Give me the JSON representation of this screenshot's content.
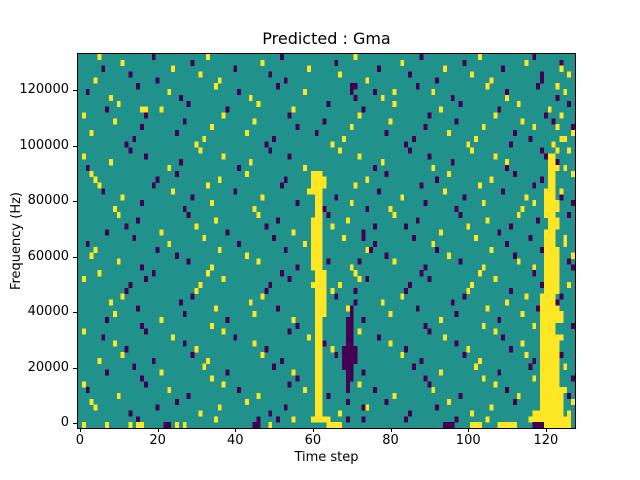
{
  "figure": {
    "title": "Predicted : Gma",
    "background": "#ffffff"
  },
  "axes": {
    "xlabel": "Time step",
    "ylabel": "Frequency (Hz)",
    "x_ticks": [
      0,
      20,
      40,
      60,
      80,
      100,
      120
    ],
    "y_ticks": [
      0,
      20000,
      40000,
      60000,
      80000,
      100000,
      120000
    ],
    "xlim": [
      -0.5,
      127.5
    ],
    "ylim": [
      -1800,
      133000
    ]
  },
  "chart_data": {
    "type": "heatmap",
    "title": "Predicted : Gma",
    "xlabel": "Time step",
    "ylabel": "Frequency (Hz)",
    "n_cols": 128,
    "n_rows": 64,
    "x_range": [
      0,
      127
    ],
    "y_range_hz": [
      0,
      128000
    ],
    "colormap": "viridis",
    "legend": "none",
    "value_classes": {
      "low": 0,
      "mid": 1,
      "high": 2
    },
    "colors": {
      "low": "#440154",
      "mid": "#21918c",
      "high": "#fde725"
    },
    "notable_features": [
      "yellow vertical band at time steps 60-63 from 0 to ~88000 Hz",
      "purple vertical band at time steps 68-71 from ~14000 to ~42000 Hz",
      "yellow vertical band at time steps 119-124 from 0 to ~90000 Hz",
      "sparse yellow/purple speckle noise over teal background everywhere"
    ],
    "rows_top_to_bottom": [
      {
        "y": [
          5,
          33,
          71,
          103
        ],
        "p": [
          19,
          52,
          88,
          117
        ]
      },
      {
        "y": [
          11,
          47,
          83,
          115
        ],
        "p": [
          29,
          66,
          99,
          124
        ]
      },
      {
        "y": [
          24,
          59,
          94,
          124
        ],
        "p": [
          6,
          40,
          77,
          109
        ]
      },
      {
        "y": [
          31,
          67,
          101,
          126
        ],
        "p": [
          13,
          49,
          85,
          119
        ]
      },
      {
        "y": [
          4,
          36,
          74,
          106
        ],
        "p": [
          20,
          53,
          92,
          119
        ]
      },
      {
        "y": [
          35,
          105,
          123
        ],
        "p": [
          15,
          51,
          [
            70,
            71
          ],
          87,
          118
        ]
      },
      {
        "y": [
          23,
          58,
          81,
          91,
          125
        ],
        "p": [
          2,
          41,
          70,
          76,
          110
        ]
      },
      {
        "y": [
          8,
          44,
          78,
          110
        ],
        "p": [
          26,
          71,
          96,
          123
        ]
      },
      {
        "y": [
          10,
          46,
          81,
          113
        ],
        "p": [
          28,
          64,
          98,
          126
        ]
      },
      {
        "y": [
          [
            16,
            17
          ],
          21,
          55,
          93,
          121
        ],
        "p": [
          7,
          38,
          73,
          108
        ]
      },
      {
        "y": [
          1,
          37,
          72,
          107,
          124
        ],
        "p": [
          17,
          54,
          90,
          120
        ]
      },
      {
        "y": [
          9,
          45,
          80,
          114
        ],
        "p": [
          27,
          63,
          97,
          122
        ]
      },
      {
        "y": [
          34,
          70,
          104,
          117,
          123
        ],
        "p": [
          16,
          56,
          89,
          127
        ]
      },
      {
        "y": [
          3,
          43,
          95,
          127
        ],
        "p": [
          25,
          61,
          79,
          112
        ]
      },
      {
        "y": [
          32,
          68,
          102,
          [
            124,
            125
          ]
        ],
        "p": [
          14,
          50,
          86,
          116
        ]
      },
      {
        "y": [
          30,
          65,
          100,
          122
        ],
        "p": [
          12,
          48,
          84,
          111
        ]
      },
      {
        "y": [
          31,
          67,
          101,
          123,
          126
        ],
        "p": [
          13,
          49,
          85,
          119
        ]
      },
      {
        "y": [
          1,
          37,
          72,
          107,
          [
            121,
            122
          ]
        ],
        "p": [
          17,
          54,
          90,
          120
        ]
      },
      {
        "y": [
          8,
          44,
          78,
          110,
          [
            121,
            122
          ]
        ],
        "p": [
          26,
          96,
          123
        ]
      },
      {
        "y": [
          23,
          58,
          91,
          [
            121,
            123
          ],
          125
        ],
        "p": [
          2,
          41,
          76,
          110
        ]
      },
      {
        "y": [
          3,
          43,
          [
            60,
            62
          ],
          95,
          [
            121,
            122
          ],
          127
        ],
        "p": [
          25,
          79,
          112
        ]
      },
      {
        "y": [
          4,
          36,
          [
            60,
            63
          ],
          74,
          106,
          [
            121,
            122
          ]
        ],
        "p": [
          20,
          53,
          92,
          119
        ]
      },
      {
        "y": [
          5,
          33,
          [
            60,
            63
          ],
          71,
          103,
          [
            121,
            122
          ]
        ],
        "p": [
          19,
          52,
          88,
          117
        ]
      },
      {
        "y": [
          24,
          [
            59,
            62
          ],
          94,
          [
            120,
            122
          ],
          124
        ],
        "p": [
          6,
          40,
          77,
          109
        ]
      },
      {
        "y": [
          11,
          47,
          [
            61,
            62
          ],
          83,
          115,
          [
            120,
            122
          ]
        ],
        "p": [
          29,
          66,
          99,
          124
        ]
      },
      {
        "y": [
          34,
          [
            61,
            62
          ],
          70,
          104,
          117,
          [
            120,
            123
          ]
        ],
        "p": [
          16,
          56,
          89,
          127
        ]
      },
      {
        "y": [
          9,
          45,
          [
            61,
            62
          ],
          80,
          114,
          [
            120,
            123
          ]
        ],
        "p": [
          27,
          63,
          74,
          97
        ]
      },
      {
        "y": [
          10,
          46,
          [
            61,
            62
          ],
          81,
          113,
          [
            120,
            122
          ]
        ],
        "p": [
          28,
          64,
          98,
          126
        ]
      },
      {
        "y": [
          35,
          [
            60,
            62
          ],
          69,
          105,
          [
            121,
            123
          ]
        ],
        "p": [
          15,
          51,
          87,
          118
        ]
      },
      {
        "y": [
          30,
          [
            60,
            62
          ],
          65,
          100,
          [
            121,
            123
          ]
        ],
        "p": [
          12,
          48,
          76,
          84,
          111
        ]
      },
      {
        "y": [
          21,
          55,
          [
            60,
            62
          ],
          93,
          [
            120,
            122
          ]
        ],
        "p": [
          7,
          38,
          73,
          108
        ]
      },
      {
        "y": [
          32,
          [
            60,
            62
          ],
          68,
          102,
          [
            120,
            122
          ],
          125
        ],
        "p": [
          14,
          50,
          73,
          86,
          116
        ]
      },
      {
        "y": [
          23,
          58,
          [
            60,
            62
          ],
          91,
          [
            120,
            122
          ],
          125
        ],
        "p": [
          2,
          41,
          76,
          110
        ]
      },
      {
        "y": [
          4,
          36,
          [
            60,
            62
          ],
          74,
          106,
          [
            120,
            123
          ]
        ],
        "p": [
          20,
          53,
          75,
          92,
          119
        ]
      },
      {
        "y": [
          3,
          43,
          [
            60,
            62
          ],
          95,
          [
            120,
            123
          ],
          127
        ],
        "p": [
          25,
          79,
          112
        ]
      },
      {
        "y": [
          10,
          46,
          [
            60,
            62
          ],
          81,
          113,
          [
            120,
            123
          ]
        ],
        "p": [
          28,
          64,
          72,
          98,
          126
        ]
      },
      {
        "y": [
          34,
          [
            60,
            62
          ],
          70,
          104,
          117,
          [
            120,
            123
          ]
        ],
        "p": [
          16,
          56,
          89,
          127
        ]
      },
      {
        "y": [
          5,
          33,
          [
            61,
            63
          ],
          71,
          103,
          [
            120,
            123
          ]
        ],
        "p": [
          19,
          52,
          88,
          117
        ]
      },
      {
        "y": [
          1,
          37,
          [
            61,
            63
          ],
          72,
          107,
          [
            120,
            123
          ]
        ],
        "p": [
          17,
          54,
          74,
          90
        ]
      },
      {
        "y": [
          31,
          [
            60,
            63
          ],
          67,
          101,
          [
            120,
            123
          ],
          126
        ],
        "p": [
          13,
          49,
          85,
          119
        ]
      },
      {
        "y": [
          30,
          [
            61,
            63
          ],
          65,
          100,
          [
            120,
            123
          ]
        ],
        "p": [
          12,
          48,
          71,
          84,
          111
        ]
      },
      {
        "y": [
          11,
          47,
          [
            61,
            63
          ],
          83,
          115,
          [
            119,
            122
          ]
        ],
        "p": [
          29,
          66,
          99,
          124
        ]
      },
      {
        "y": [
          8,
          44,
          [
            61,
            63
          ],
          78,
          110,
          [
            119,
            122
          ]
        ],
        "p": [
          26,
          71,
          96,
          123
        ]
      },
      {
        "y": [
          35,
          [
            61,
            63
          ],
          69,
          105,
          [
            119,
            123
          ]
        ],
        "p": [
          15,
          51,
          70,
          87,
          118
        ]
      },
      {
        "y": [
          9,
          45,
          [
            61,
            63
          ],
          80,
          114,
          [
            119,
            124
          ]
        ],
        "p": [
          27,
          70,
          97
        ]
      },
      {
        "y": [
          21,
          55,
          [
            61,
            62
          ],
          93,
          [
            119,
            124
          ]
        ],
        "p": [
          7,
          38,
          [
            69,
            70
          ],
          73,
          108
        ]
      },
      {
        "y": [
          34,
          [
            61,
            62
          ],
          104,
          117,
          [
            119,
            122
          ]
        ],
        "p": [
          16,
          56,
          [
            69,
            70
          ],
          89,
          127
        ]
      },
      {
        "y": [
          1,
          37,
          [
            61,
            62
          ],
          72,
          107,
          [
            119,
            122
          ]
        ],
        "p": [
          17,
          54,
          [
            69,
            70
          ],
          90
        ]
      },
      {
        "y": [
          24,
          59,
          [
            61,
            62
          ],
          94,
          [
            119,
            124
          ]
        ],
        "p": [
          6,
          40,
          [
            69,
            70
          ],
          77,
          109
        ]
      },
      {
        "y": [
          9,
          45,
          [
            61,
            62
          ],
          80,
          114,
          [
            119,
            123
          ]
        ],
        "p": [
          27,
          63,
          [
            69,
            70
          ],
          97
        ]
      },
      {
        "y": [
          30,
          [
            61,
            62
          ],
          65,
          100,
          [
            119,
            123
          ]
        ],
        "p": [
          12,
          48,
          [
            68,
            71
          ],
          84,
          111
        ]
      },
      {
        "y": [
          11,
          47,
          [
            61,
            62
          ],
          83,
          115,
          [
            119,
            123
          ]
        ],
        "p": [
          29,
          66,
          [
            68,
            71
          ],
          99,
          124
        ]
      },
      {
        "y": [
          5,
          33,
          [
            61,
            62
          ],
          103,
          [
            119,
            123
          ]
        ],
        "p": [
          19,
          52,
          [
            68,
            71
          ],
          88,
          117
        ]
      },
      {
        "y": [
          32,
          [
            61,
            62
          ],
          102,
          [
            119,
            123
          ],
          125
        ],
        "p": [
          14,
          50,
          [
            68,
            70
          ],
          86,
          116
        ]
      },
      {
        "y": [
          21,
          55,
          [
            61,
            62
          ],
          93,
          [
            119,
            123
          ]
        ],
        "p": [
          7,
          38,
          [
            69,
            70
          ],
          73,
          108
        ]
      },
      {
        "y": [
          34,
          [
            61,
            62
          ],
          104,
          117,
          [
            119,
            123
          ]
        ],
        "p": [
          16,
          56,
          [
            69,
            70
          ],
          89,
          127
        ]
      },
      {
        "y": [
          1,
          37,
          [
            61,
            62
          ],
          72,
          107,
          [
            119,
            123
          ]
        ],
        "p": [
          17,
          54,
          69,
          90
        ]
      },
      {
        "y": [
          23,
          58,
          [
            61,
            62
          ],
          91,
          [
            119,
            125
          ]
        ],
        "p": [
          2,
          41,
          69,
          76,
          110
        ]
      },
      {
        "y": [
          10,
          46,
          [
            61,
            62
          ],
          81,
          113,
          [
            119,
            124
          ]
        ],
        "p": [
          28,
          64,
          98,
          126
        ]
      },
      {
        "y": [
          3,
          43,
          [
            61,
            62
          ],
          95,
          [
            119,
            124
          ],
          127
        ],
        "p": [
          25,
          69,
          79,
          112
        ]
      },
      {
        "y": [
          4,
          36,
          [
            61,
            62
          ],
          74,
          106,
          [
            119,
            124
          ]
        ],
        "p": [
          20,
          53,
          73,
          92
        ]
      },
      {
        "y": [
          31,
          [
            61,
            62
          ],
          67,
          101,
          [
            117,
            124
          ],
          126
        ],
        "p": [
          13,
          49,
          85
        ]
      },
      {
        "y": [
          35,
          55,
          [
            60,
            64
          ],
          105,
          [
            116,
            126
          ]
        ],
        "p": [
          15,
          46,
          51,
          69,
          73,
          84,
          97
        ]
      },
      {
        "y": [
          1,
          7,
          13,
          [
            15,
            16
          ],
          25,
          27,
          49,
          [
            64,
            67
          ],
          [
            101,
            103
          ],
          [
            108,
            112
          ],
          [
            120,
            126
          ]
        ],
        "p": [
          [
            22,
            23
          ],
          [
            45,
            46
          ],
          [
            94,
            96
          ],
          [
            117,
            119
          ]
        ]
      }
    ]
  }
}
